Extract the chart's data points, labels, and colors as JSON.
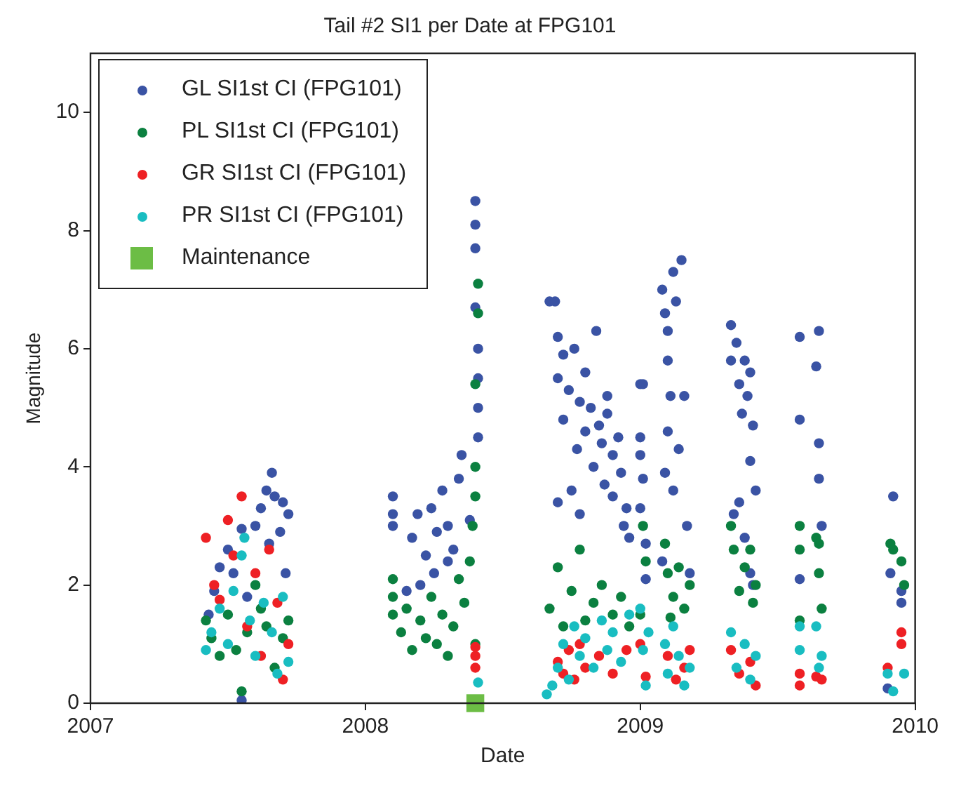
{
  "chart_data": {
    "type": "scatter",
    "title": "Tail #2 SI1 per Date at FPG101",
    "xlabel": "Date",
    "ylabel": "Magnitude",
    "xlim": [
      2007,
      2010
    ],
    "xticks": [
      2007,
      2008,
      2009,
      2010
    ],
    "ylim": [
      0,
      11
    ],
    "yticks": [
      0,
      2,
      4,
      6,
      8,
      10
    ],
    "grid": false,
    "legend": "top left",
    "marker": "circle",
    "series": [
      {
        "name": "GL SI1st CI (FPG101)",
        "color": "#3a53a4",
        "x": [
          2007.43,
          2007.45,
          2007.47,
          2007.5,
          2007.52,
          2007.55,
          2007.57,
          2007.6,
          2007.62,
          2007.64,
          2007.66,
          2007.67,
          2007.69,
          2007.7,
          2007.71,
          2007.72,
          2007.65,
          2007.55,
          2008.1,
          2008.1,
          2008.1,
          2008.17,
          2008.19,
          2008.22,
          2008.24,
          2008.26,
          2008.28,
          2008.3,
          2008.32,
          2008.34,
          2008.35,
          2008.2,
          2008.25,
          2008.3,
          2008.15,
          2008.38,
          2008.4,
          2008.4,
          2008.4,
          2008.4,
          2008.41,
          2008.41,
          2008.41,
          2008.41,
          2008.67,
          2008.69,
          2008.7,
          2008.7,
          2008.72,
          2008.72,
          2008.74,
          2008.76,
          2008.77,
          2008.78,
          2008.8,
          2008.8,
          2008.82,
          2008.83,
          2008.84,
          2008.85,
          2008.86,
          2008.87,
          2008.88,
          2008.88,
          2008.9,
          2008.9,
          2008.92,
          2008.93,
          2008.94,
          2008.95,
          2008.78,
          2008.75,
          2008.7,
          2008.96,
          2009.0,
          2009.01,
          2009.0,
          2009.0,
          2009.01,
          2009.0,
          2009.02,
          2009.02,
          2009.08,
          2009.09,
          2009.1,
          2009.1,
          2009.11,
          2009.12,
          2009.13,
          2009.15,
          2009.16,
          2009.1,
          2009.09,
          2009.12,
          2009.14,
          2009.18,
          2009.17,
          2009.08,
          2009.33,
          2009.33,
          2009.35,
          2009.36,
          2009.37,
          2009.38,
          2009.39,
          2009.4,
          2009.41,
          2009.4,
          2009.42,
          2009.34,
          2009.36,
          2009.38,
          2009.4,
          2009.41,
          2009.58,
          2009.58,
          2009.58,
          2009.65,
          2009.64,
          2009.65,
          2009.65,
          2009.66,
          2009.92,
          2009.91,
          2009.95,
          2009.95,
          2009.9
        ],
        "values": [
          1.5,
          1.9,
          2.3,
          2.6,
          2.2,
          2.95,
          1.8,
          3.0,
          3.3,
          3.6,
          3.9,
          3.5,
          2.9,
          3.4,
          2.2,
          3.2,
          2.7,
          0.05,
          3.5,
          3.2,
          3.0,
          2.8,
          3.2,
          2.5,
          3.3,
          2.9,
          3.6,
          3.0,
          2.6,
          3.8,
          4.2,
          2.0,
          2.2,
          2.4,
          1.9,
          3.1,
          8.5,
          8.1,
          7.7,
          6.7,
          6.0,
          5.5,
          5.0,
          4.5,
          6.8,
          6.8,
          6.2,
          5.5,
          5.9,
          4.8,
          5.3,
          6.0,
          4.3,
          5.1,
          5.6,
          4.6,
          5.0,
          4.0,
          6.3,
          4.7,
          4.4,
          3.7,
          4.9,
          5.2,
          4.2,
          3.5,
          4.5,
          3.9,
          3.0,
          3.3,
          3.2,
          3.6,
          3.4,
          2.8,
          5.4,
          5.4,
          4.5,
          4.2,
          3.8,
          3.3,
          2.7,
          2.1,
          7.0,
          6.6,
          6.3,
          5.8,
          5.2,
          7.3,
          6.8,
          7.5,
          5.2,
          4.6,
          3.9,
          3.6,
          4.3,
          2.2,
          3.0,
          2.4,
          6.4,
          5.8,
          6.1,
          5.4,
          4.9,
          5.8,
          5.2,
          5.6,
          4.7,
          4.1,
          3.6,
          3.2,
          3.4,
          2.8,
          2.2,
          2.0,
          6.2,
          4.8,
          2.1,
          6.3,
          5.7,
          4.4,
          3.8,
          3.0,
          3.5,
          2.2,
          1.9,
          1.7,
          0.25
        ]
      },
      {
        "name": "PL SI1st CI (FPG101)",
        "color": "#0b8040",
        "x": [
          2007.42,
          2007.44,
          2007.47,
          2007.5,
          2007.53,
          2007.55,
          2007.57,
          2007.6,
          2007.62,
          2007.64,
          2007.67,
          2007.7,
          2007.72,
          2008.1,
          2008.1,
          2008.1,
          2008.13,
          2008.15,
          2008.17,
          2008.2,
          2008.22,
          2008.24,
          2008.26,
          2008.28,
          2008.3,
          2008.32,
          2008.34,
          2008.36,
          2008.38,
          2008.39,
          2008.4,
          2008.4,
          2008.4,
          2008.41,
          2008.41,
          2008.4,
          2008.67,
          2008.7,
          2008.72,
          2008.75,
          2008.78,
          2008.8,
          2008.83,
          2008.86,
          2008.9,
          2008.93,
          2008.96,
          2009.01,
          2009.02,
          2009.0,
          2009.09,
          2009.1,
          2009.12,
          2009.14,
          2009.16,
          2009.18,
          2009.11,
          2009.33,
          2009.34,
          2009.36,
          2009.38,
          2009.4,
          2009.41,
          2009.42,
          2009.58,
          2009.58,
          2009.58,
          2009.64,
          2009.65,
          2009.65,
          2009.66,
          2009.91,
          2009.92,
          2009.95,
          2009.96
        ],
        "values": [
          1.4,
          1.1,
          0.8,
          1.5,
          0.9,
          0.2,
          1.2,
          2.0,
          1.6,
          1.3,
          0.6,
          1.1,
          1.4,
          2.1,
          1.8,
          1.5,
          1.2,
          1.6,
          0.9,
          1.4,
          1.1,
          1.8,
          1.0,
          1.5,
          0.8,
          1.3,
          2.1,
          1.7,
          2.4,
          3.0,
          3.5,
          4.0,
          5.4,
          7.1,
          6.6,
          1.0,
          1.6,
          2.3,
          1.3,
          1.9,
          2.6,
          1.4,
          1.7,
          2.0,
          1.5,
          1.8,
          1.3,
          3.0,
          2.4,
          1.5,
          2.7,
          2.2,
          1.8,
          2.3,
          1.6,
          2.0,
          1.45,
          3.0,
          2.6,
          1.9,
          2.3,
          2.6,
          1.7,
          2.0,
          3.0,
          2.6,
          1.4,
          2.8,
          2.7,
          2.2,
          1.6,
          2.7,
          2.6,
          2.4,
          2.0
        ]
      },
      {
        "name": "GR SI1st CI (FPG101)",
        "color": "#ee2024",
        "x": [
          2007.42,
          2007.45,
          2007.47,
          2007.5,
          2007.52,
          2007.55,
          2007.57,
          2007.6,
          2007.62,
          2007.65,
          2007.68,
          2007.7,
          2007.72,
          2008.4,
          2008.4,
          2008.4,
          2008.7,
          2008.72,
          2008.74,
          2008.76,
          2008.78,
          2008.8,
          2008.85,
          2008.9,
          2008.95,
          2009.0,
          2009.02,
          2009.1,
          2009.13,
          2009.16,
          2009.18,
          2009.33,
          2009.36,
          2009.4,
          2009.42,
          2009.58,
          2009.58,
          2009.64,
          2009.66,
          2009.9,
          2009.95,
          2009.95
        ],
        "values": [
          2.8,
          2.0,
          1.75,
          3.1,
          2.5,
          3.5,
          1.3,
          2.2,
          0.8,
          2.6,
          1.7,
          0.4,
          1.0,
          0.95,
          0.8,
          0.6,
          0.7,
          0.5,
          0.9,
          0.4,
          1.0,
          0.6,
          0.8,
          0.5,
          0.9,
          1.0,
          0.45,
          0.8,
          0.4,
          0.6,
          0.9,
          0.9,
          0.5,
          0.7,
          0.3,
          0.5,
          0.3,
          0.45,
          0.4,
          0.6,
          1.0,
          1.2
        ]
      },
      {
        "name": "PR SI1st CI (FPG101)",
        "color": "#19bdc1",
        "x": [
          2007.42,
          2007.44,
          2007.47,
          2007.5,
          2007.52,
          2007.55,
          2007.56,
          2007.58,
          2007.6,
          2007.63,
          2007.66,
          2007.68,
          2007.7,
          2007.72,
          2008.41,
          2008.66,
          2008.68,
          2008.7,
          2008.72,
          2008.74,
          2008.76,
          2008.78,
          2008.8,
          2008.83,
          2008.86,
          2008.88,
          2008.9,
          2008.93,
          2008.96,
          2009.0,
          2009.01,
          2009.02,
          2009.03,
          2009.09,
          2009.1,
          2009.12,
          2009.14,
          2009.16,
          2009.18,
          2009.33,
          2009.35,
          2009.38,
          2009.4,
          2009.42,
          2009.58,
          2009.58,
          2009.64,
          2009.65,
          2009.66,
          2009.9,
          2009.92,
          2009.96
        ],
        "values": [
          0.9,
          1.2,
          1.6,
          1.0,
          1.9,
          2.5,
          2.8,
          1.4,
          0.8,
          1.7,
          1.2,
          0.5,
          1.8,
          0.7,
          0.35,
          0.15,
          0.3,
          0.6,
          1.0,
          0.4,
          1.3,
          0.8,
          1.1,
          0.6,
          1.4,
          0.9,
          1.2,
          0.7,
          1.5,
          1.6,
          0.9,
          0.3,
          1.2,
          1.0,
          0.5,
          1.3,
          0.8,
          0.3,
          0.6,
          1.2,
          0.6,
          1.0,
          0.4,
          0.8,
          1.3,
          0.9,
          1.3,
          0.6,
          0.8,
          0.5,
          0.2,
          0.5
        ]
      },
      {
        "name": "Maintenance",
        "color": "#6cbd45",
        "marker": "square",
        "x": [
          2008.4
        ],
        "values": [
          0
        ]
      }
    ]
  }
}
